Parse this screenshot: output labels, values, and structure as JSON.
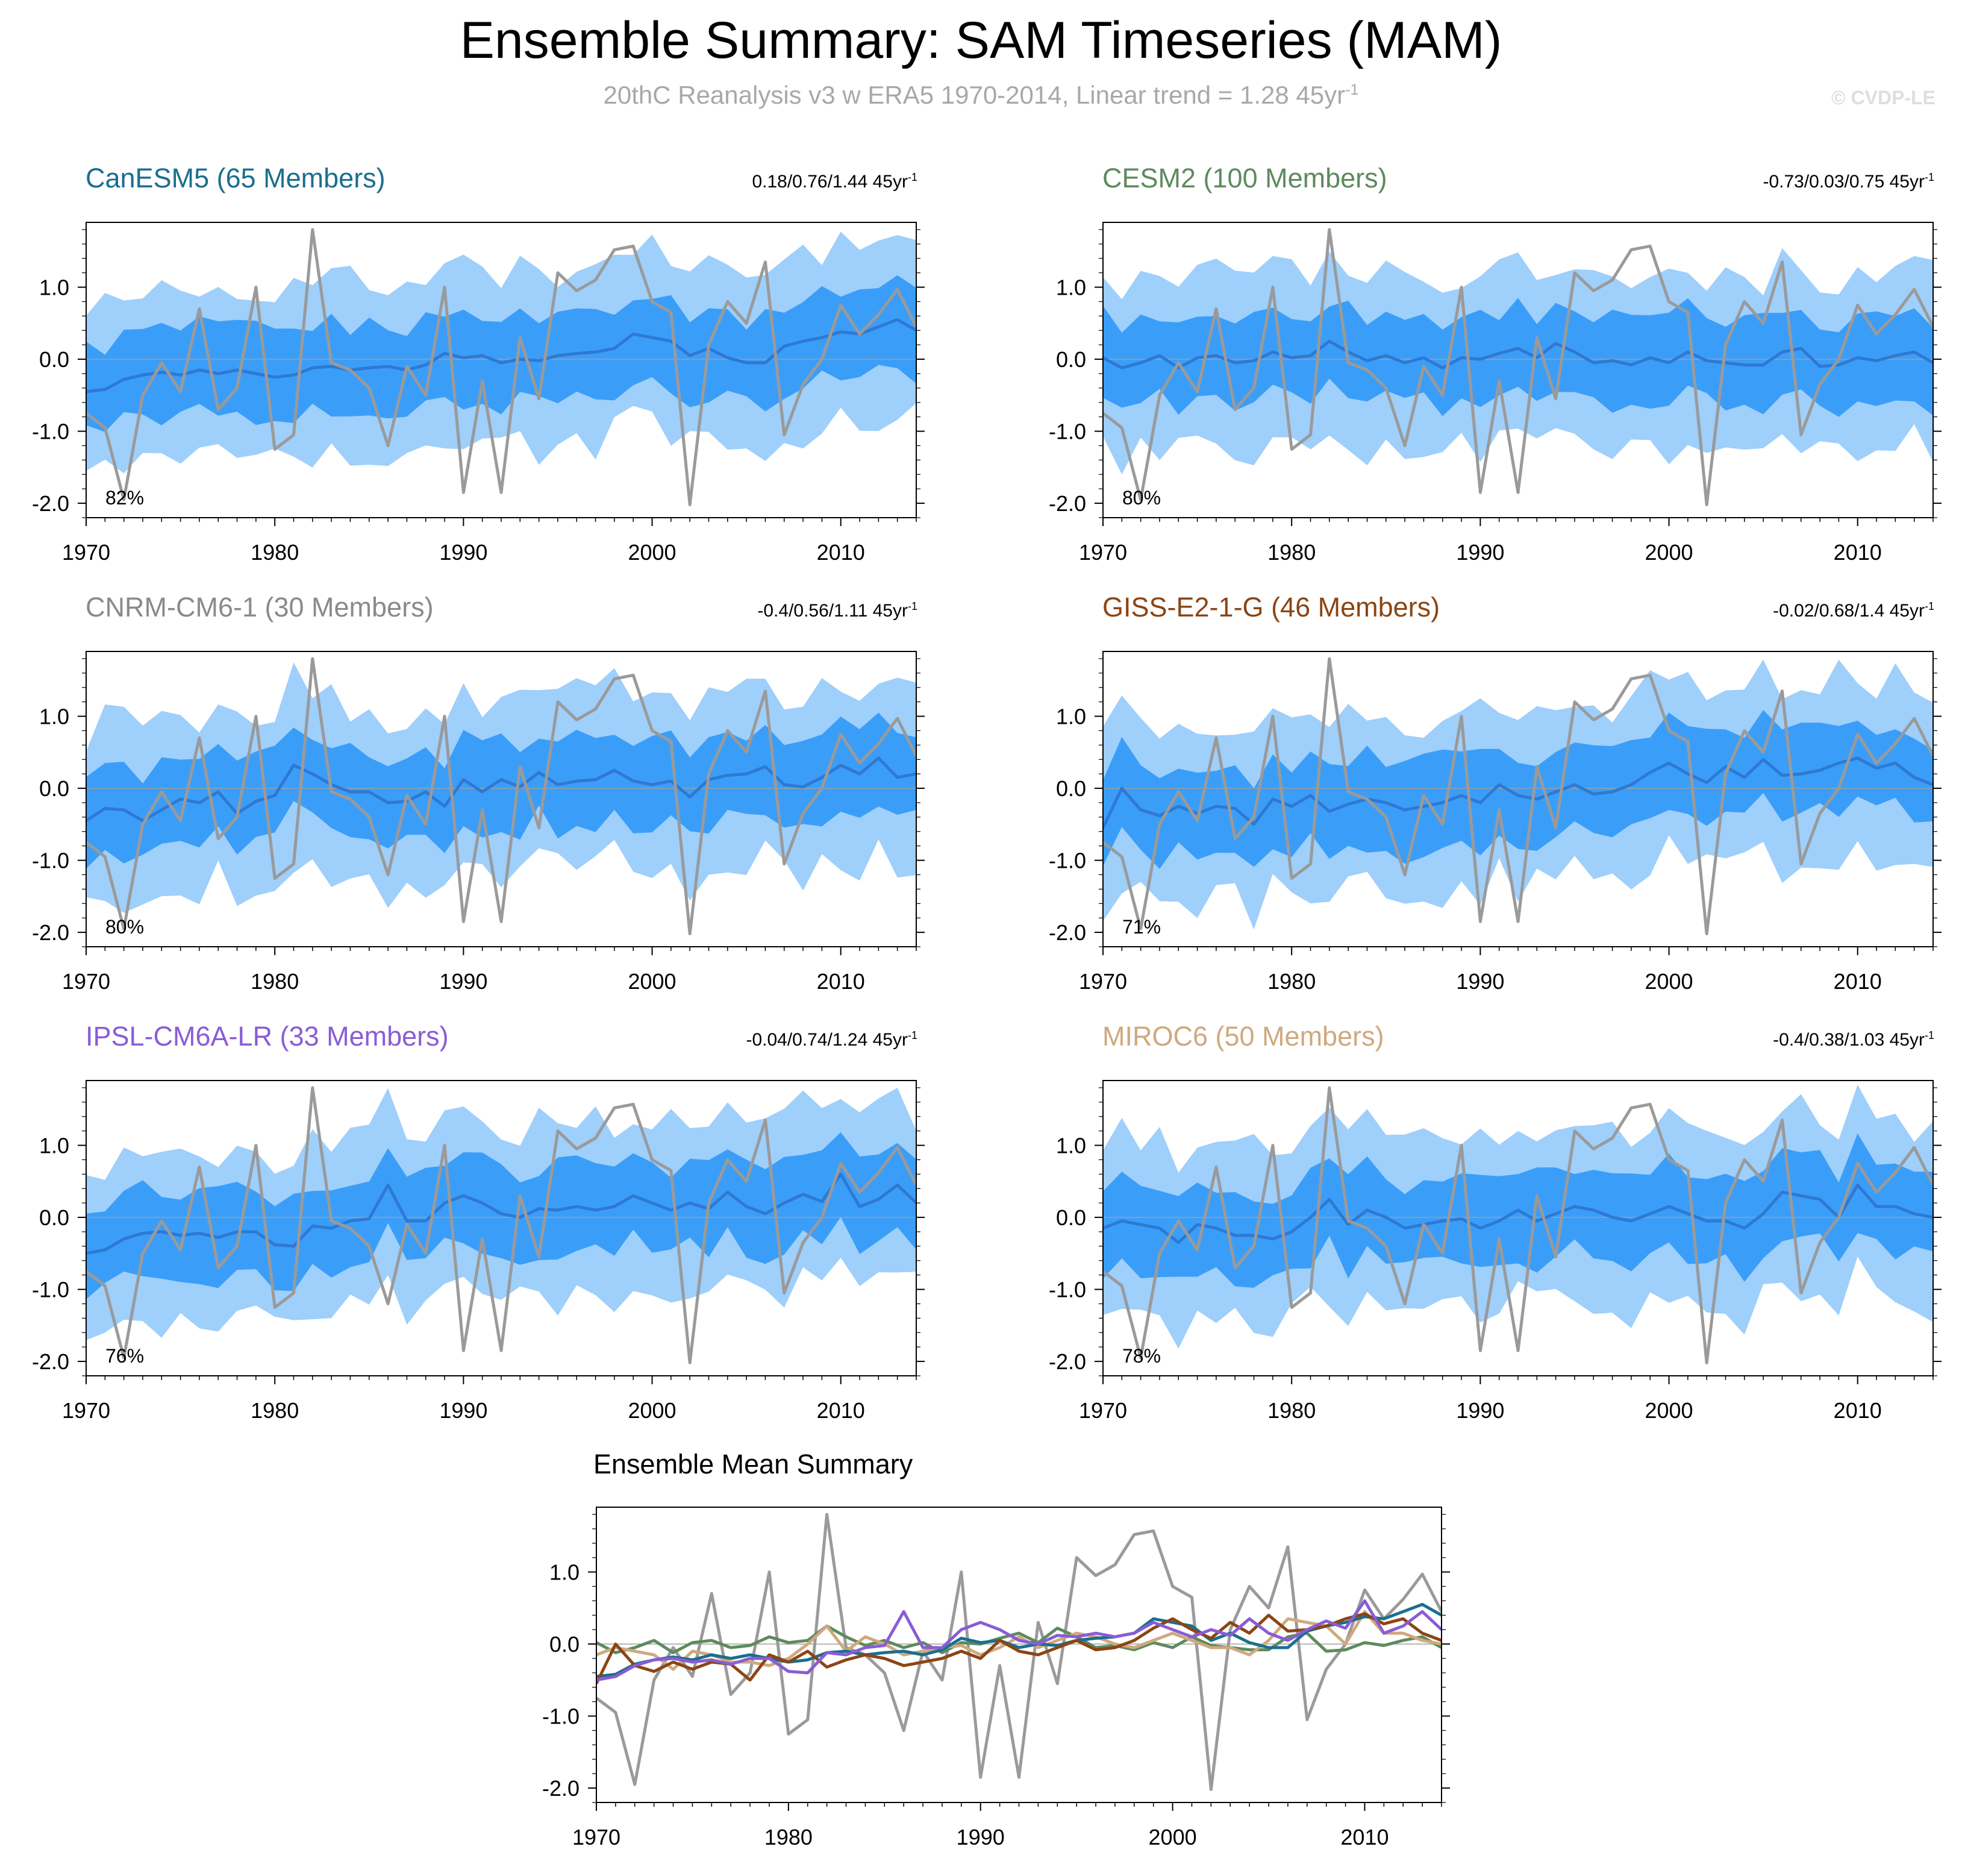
{
  "header": {
    "title": "Ensemble Summary: SAM Timeseries (MAM)",
    "subtitle": "20thC Reanalysis v3 w ERA5 1970-2014, Linear trend = 1.28 45yr",
    "subtitle_sup": "-1",
    "credit": "© CVDP-LE"
  },
  "colors": {
    "band_outer": "#9fcffb",
    "band_inner": "#3a9ef8",
    "ensemble_mean": "#2f78d2",
    "observations": "#9a9a9a",
    "zero_line": "#a0a0a0"
  },
  "axis": {
    "x_ticks": [
      "1970",
      "1980",
      "1990",
      "2000",
      "2010"
    ],
    "y_ticks": [
      "1.0",
      "0.0",
      "-1.0",
      "-2.0"
    ]
  },
  "chart_data": [
    {
      "type": "area",
      "title": "CanESM5 (65 Members)",
      "title_color": "#1b6e8e",
      "trend": "0.18/0.76/1.44 45yr",
      "trend_sup": "-1",
      "percent": "82%",
      "xlim": [
        1970,
        2014
      ],
      "ylim": [
        -2.2,
        1.9
      ],
      "series": [
        {
          "name": "ensemble mean",
          "x0": 1970,
          "values": [
            -0.45,
            -0.42,
            -0.28,
            -0.22,
            -0.18,
            -0.22,
            -0.15,
            -0.2,
            -0.15,
            -0.2,
            -0.25,
            -0.22,
            -0.12,
            -0.1,
            -0.15,
            -0.12,
            -0.1,
            -0.15,
            -0.08,
            0.08,
            0.02,
            0.05,
            -0.05,
            0.0,
            -0.02,
            0.05,
            0.08,
            0.1,
            0.15,
            0.35,
            0.3,
            0.25,
            0.05,
            0.15,
            0.02,
            -0.05,
            -0.05,
            0.18,
            0.25,
            0.3,
            0.38,
            0.35,
            0.45,
            0.55,
            0.4
          ]
        }
      ]
    },
    {
      "type": "area",
      "title": "CESM2 (100 Members)",
      "title_color": "#5d8a5e",
      "trend": "-0.73/0.03/0.75 45yr",
      "trend_sup": "-1",
      "percent": "80%",
      "xlim": [
        1970,
        2014
      ],
      "ylim": [
        -2.2,
        1.9
      ],
      "series": [
        {
          "name": "ensemble mean",
          "x0": 1970,
          "values": [
            0.02,
            -0.12,
            -0.05,
            0.05,
            -0.12,
            0.02,
            0.05,
            -0.05,
            -0.02,
            0.1,
            0.02,
            0.05,
            0.25,
            0.1,
            -0.02,
            0.05,
            -0.05,
            0.02,
            -0.12,
            0.02,
            0.0,
            0.08,
            0.15,
            0.02,
            0.22,
            0.1,
            -0.05,
            -0.02,
            -0.08,
            0.02,
            -0.05,
            0.1,
            -0.02,
            -0.05,
            -0.08,
            -0.08,
            0.1,
            0.15,
            -0.1,
            -0.08,
            0.02,
            -0.02,
            0.05,
            0.1,
            -0.05
          ]
        }
      ]
    },
    {
      "type": "area",
      "title": "CNRM-CM6-1 (30 Members)",
      "title_color": "#8a8a8a",
      "trend": "-0.4/0.56/1.11 45yr",
      "trend_sup": "-1",
      "percent": "80%",
      "xlim": [
        1970,
        2014
      ],
      "ylim": [
        -2.2,
        1.9
      ],
      "series": [
        {
          "name": "ensemble mean",
          "x0": 1970,
          "values": [
            -0.45,
            -0.28,
            -0.3,
            -0.45,
            -0.3,
            -0.15,
            -0.2,
            -0.05,
            -0.35,
            -0.18,
            -0.1,
            0.32,
            0.2,
            0.05,
            -0.05,
            -0.05,
            -0.2,
            -0.18,
            -0.05,
            -0.25,
            0.12,
            -0.05,
            0.12,
            0.02,
            0.22,
            0.05,
            0.1,
            0.12,
            0.25,
            0.1,
            0.05,
            0.1,
            -0.12,
            0.12,
            0.18,
            0.2,
            0.3,
            0.05,
            0.02,
            0.15,
            0.32,
            0.2,
            0.42,
            0.15,
            0.2
          ]
        }
      ]
    },
    {
      "type": "area",
      "title": "GISS-E2-1-G (46 Members)",
      "title_color": "#8b4513",
      "trend": "-0.02/0.68/1.4 45yr",
      "trend_sup": "-1",
      "percent": "71%",
      "xlim": [
        1970,
        2014
      ],
      "ylim": [
        -2.2,
        1.9
      ],
      "series": [
        {
          "name": "ensemble mean",
          "x0": 1970,
          "values": [
            -0.55,
            0.0,
            -0.3,
            -0.38,
            -0.25,
            -0.35,
            -0.25,
            -0.28,
            -0.5,
            -0.15,
            -0.25,
            -0.1,
            -0.32,
            -0.22,
            -0.15,
            -0.2,
            -0.3,
            -0.25,
            -0.2,
            -0.1,
            -0.2,
            0.05,
            -0.1,
            -0.15,
            -0.05,
            0.05,
            -0.08,
            -0.05,
            0.05,
            0.22,
            0.35,
            0.2,
            0.08,
            0.3,
            0.15,
            0.4,
            0.18,
            0.2,
            0.25,
            0.35,
            0.42,
            0.28,
            0.35,
            0.15,
            0.05
          ]
        }
      ]
    },
    {
      "type": "area",
      "title": "IPSL-CM6A-LR (33 Members)",
      "title_color": "#8a5cd6",
      "trend": "-0.04/0.74/1.24 45yr",
      "trend_sup": "-1",
      "percent": "76%",
      "xlim": [
        1970,
        2014
      ],
      "ylim": [
        -2.2,
        1.9
      ],
      "series": [
        {
          "name": "ensemble mean",
          "x0": 1970,
          "values": [
            -0.5,
            -0.45,
            -0.3,
            -0.22,
            -0.2,
            -0.25,
            -0.22,
            -0.28,
            -0.2,
            -0.2,
            -0.38,
            -0.4,
            -0.12,
            -0.15,
            -0.05,
            -0.02,
            0.45,
            -0.05,
            -0.05,
            0.2,
            0.3,
            0.2,
            0.05,
            0.0,
            0.12,
            0.1,
            0.15,
            0.1,
            0.15,
            0.3,
            0.2,
            0.1,
            0.2,
            0.12,
            0.35,
            0.15,
            0.05,
            0.2,
            0.32,
            0.22,
            0.6,
            0.15,
            0.25,
            0.45,
            0.2
          ]
        }
      ]
    },
    {
      "type": "area",
      "title": "MIROC6 (50 Members)",
      "title_color": "#cfa97e",
      "trend": "-0.4/0.38/1.03 45yr",
      "trend_sup": "-1",
      "percent": "78%",
      "xlim": [
        1970,
        2014
      ],
      "ylim": [
        -2.2,
        1.9
      ],
      "series": [
        {
          "name": "ensemble mean",
          "x0": 1970,
          "values": [
            -0.15,
            -0.05,
            -0.1,
            -0.15,
            -0.35,
            -0.1,
            -0.15,
            -0.25,
            -0.25,
            -0.3,
            -0.2,
            0.0,
            0.25,
            -0.1,
            0.1,
            0.0,
            -0.15,
            -0.1,
            -0.05,
            -0.02,
            -0.15,
            -0.05,
            0.1,
            -0.05,
            0.05,
            0.15,
            0.1,
            0.0,
            -0.05,
            0.05,
            0.15,
            0.05,
            -0.05,
            -0.05,
            -0.15,
            0.05,
            0.35,
            0.3,
            0.25,
            0.0,
            0.45,
            0.15,
            0.15,
            0.05,
            0.0
          ]
        }
      ]
    },
    {
      "type": "line",
      "title": "Ensemble Mean Summary",
      "xlim": [
        1970,
        2014
      ],
      "ylim": [
        -2.2,
        1.9
      ],
      "series": [
        {
          "name": "CanESM5",
          "color": "#1b6e8e",
          "x0": 1970,
          "values": [
            -0.45,
            -0.42,
            -0.28,
            -0.22,
            -0.18,
            -0.22,
            -0.15,
            -0.2,
            -0.15,
            -0.2,
            -0.25,
            -0.22,
            -0.12,
            -0.1,
            -0.15,
            -0.12,
            -0.1,
            -0.15,
            -0.08,
            0.08,
            0.02,
            0.05,
            -0.05,
            0.0,
            -0.02,
            0.05,
            0.08,
            0.1,
            0.15,
            0.35,
            0.3,
            0.25,
            0.05,
            0.15,
            0.02,
            -0.05,
            -0.05,
            0.18,
            0.25,
            0.3,
            0.38,
            0.35,
            0.45,
            0.55,
            0.4
          ]
        },
        {
          "name": "CESM2",
          "color": "#5d8a5e",
          "x0": 1970,
          "values": [
            0.02,
            -0.12,
            -0.05,
            0.05,
            -0.12,
            0.02,
            0.05,
            -0.05,
            -0.02,
            0.1,
            0.02,
            0.05,
            0.25,
            0.1,
            -0.02,
            0.05,
            -0.05,
            0.02,
            -0.12,
            0.02,
            0.0,
            0.08,
            0.15,
            0.02,
            0.22,
            0.1,
            -0.05,
            -0.02,
            -0.08,
            0.02,
            -0.05,
            0.1,
            -0.02,
            -0.05,
            -0.08,
            -0.08,
            0.1,
            0.15,
            -0.1,
            -0.08,
            0.02,
            -0.02,
            0.05,
            0.1,
            -0.05
          ]
        },
        {
          "name": "GISS-E2-1-G",
          "color": "#8b4513",
          "x0": 1970,
          "values": [
            -0.55,
            0.0,
            -0.3,
            -0.38,
            -0.25,
            -0.35,
            -0.25,
            -0.28,
            -0.5,
            -0.15,
            -0.25,
            -0.1,
            -0.32,
            -0.22,
            -0.15,
            -0.2,
            -0.3,
            -0.25,
            -0.2,
            -0.1,
            -0.2,
            0.05,
            -0.1,
            -0.15,
            -0.05,
            0.05,
            -0.08,
            -0.05,
            0.05,
            0.22,
            0.35,
            0.2,
            0.08,
            0.3,
            0.15,
            0.4,
            0.18,
            0.2,
            0.25,
            0.35,
            0.42,
            0.28,
            0.35,
            0.15,
            0.05
          ]
        },
        {
          "name": "IPSL-CM6A-LR",
          "color": "#8a5cd6",
          "x0": 1970,
          "values": [
            -0.5,
            -0.45,
            -0.3,
            -0.22,
            -0.2,
            -0.25,
            -0.22,
            -0.28,
            -0.2,
            -0.2,
            -0.38,
            -0.4,
            -0.12,
            -0.15,
            -0.05,
            -0.02,
            0.45,
            -0.05,
            -0.05,
            0.2,
            0.3,
            0.2,
            0.05,
            0.0,
            0.12,
            0.1,
            0.15,
            0.1,
            0.15,
            0.3,
            0.2,
            0.1,
            0.2,
            0.12,
            0.35,
            0.15,
            0.05,
            0.2,
            0.32,
            0.22,
            0.6,
            0.15,
            0.25,
            0.45,
            0.2
          ]
        },
        {
          "name": "MIROC6",
          "color": "#cfa97e",
          "x0": 1970,
          "values": [
            -0.15,
            -0.05,
            -0.1,
            -0.15,
            -0.35,
            -0.1,
            -0.15,
            -0.25,
            -0.25,
            -0.3,
            -0.2,
            0.0,
            0.25,
            -0.1,
            0.1,
            0.0,
            -0.15,
            -0.1,
            -0.05,
            -0.02,
            -0.15,
            -0.05,
            0.1,
            -0.05,
            0.05,
            0.15,
            0.1,
            0.0,
            -0.05,
            0.05,
            0.15,
            0.05,
            -0.05,
            -0.05,
            -0.15,
            0.05,
            0.35,
            0.3,
            0.25,
            0.0,
            0.45,
            0.15,
            0.15,
            0.05,
            0.0
          ]
        },
        {
          "name": "Observations (20CRv3 w ERA5)",
          "color": "#9a9a9a",
          "x0": 1970,
          "values": [
            -0.75,
            -0.95,
            -1.95,
            -0.5,
            -0.05,
            -0.45,
            0.7,
            -0.7,
            -0.4,
            1.0,
            -1.25,
            -1.05,
            1.8,
            -0.05,
            -0.15,
            -0.4,
            -1.2,
            -0.1,
            -0.5,
            1.0,
            -1.85,
            -0.3,
            -1.85,
            0.3,
            -0.55,
            1.2,
            0.95,
            1.1,
            1.52,
            1.57,
            0.8,
            0.65,
            -2.02,
            0.2,
            0.8,
            0.5,
            1.35,
            -1.05,
            -0.35,
            0.0,
            0.75,
            0.35,
            0.62,
            0.97,
            0.45
          ]
        }
      ]
    }
  ]
}
